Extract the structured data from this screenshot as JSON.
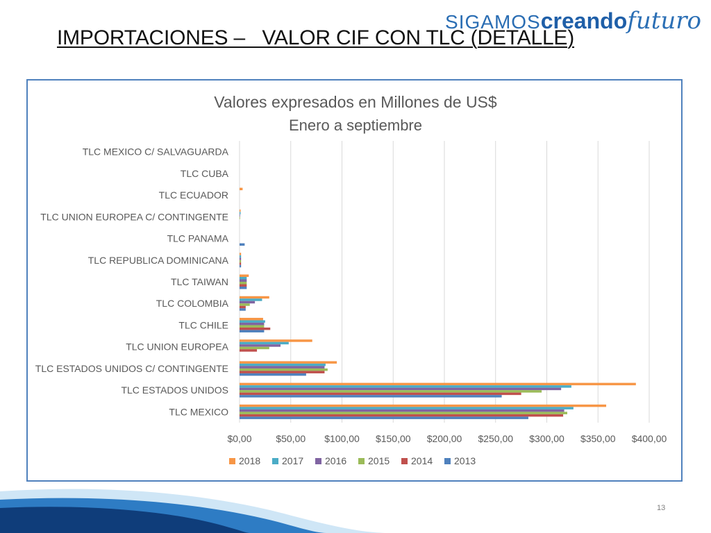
{
  "slide": {
    "title": "IMPORTACIONES –   VALOR CIF CON TLC (DETALLE)",
    "brand_part1": "SIGAMOS",
    "brand_part2": "creando",
    "brand_part3": "futuro",
    "page_number": "13"
  },
  "chart_data": {
    "type": "bar",
    "orientation": "horizontal",
    "title": "Valores expresados en Millones de US$",
    "subtitle": "Enero a septiembre",
    "categories": [
      "TLC MEXICO",
      "TLC ESTADOS UNIDOS",
      "TLC ESTADOS UNIDOS C/ CONTINGENTE",
      "TLC UNION EUROPEA",
      "TLC CHILE",
      "TLC COLOMBIA",
      "TLC TAIWAN",
      "TLC REPUBLICA DOMINICANA",
      "TLC PANAMA",
      "TLC UNION EUROPEA C/ CONTINGENTE",
      "TLC ECUADOR",
      "TLC CUBA",
      "TLC MEXICO C/ SALVAGUARDA"
    ],
    "series": [
      {
        "name": "2018",
        "color": "#f79646",
        "values": [
          358,
          387,
          95,
          71,
          23,
          29,
          9,
          1.5,
          0,
          1,
          3,
          0,
          0
        ]
      },
      {
        "name": "2017",
        "color": "#4bacc6",
        "values": [
          326,
          324,
          84,
          48,
          25,
          22,
          7,
          1.5,
          0,
          1,
          0,
          0,
          0
        ]
      },
      {
        "name": "2016",
        "color": "#8064a2",
        "values": [
          317,
          314,
          83,
          40,
          24,
          15,
          7,
          1.5,
          0,
          0.5,
          0,
          0,
          0
        ]
      },
      {
        "name": "2015",
        "color": "#9bbb59",
        "values": [
          320,
          295,
          86,
          29,
          24,
          10,
          7,
          1.5,
          0,
          0.5,
          0,
          0,
          0
        ]
      },
      {
        "name": "2014",
        "color": "#c0504d",
        "values": [
          316,
          275,
          83,
          17,
          30,
          6,
          7,
          1.5,
          0,
          0,
          0,
          0,
          0
        ]
      },
      {
        "name": "2013",
        "color": "#4f81bd",
        "values": [
          282,
          256,
          65,
          0,
          24,
          6,
          7,
          1.5,
          5,
          0,
          0,
          0,
          0
        ]
      }
    ],
    "xlim": [
      0,
      400
    ],
    "x_ticks": [
      "$0,00",
      "$50,00",
      "$100,00",
      "$150,00",
      "$200,00",
      "$250,00",
      "$300,00",
      "$350,00",
      "$400,00"
    ],
    "grid": true,
    "legend_position": "bottom"
  }
}
